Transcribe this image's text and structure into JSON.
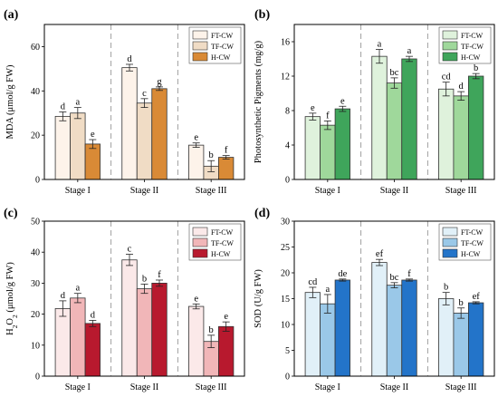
{
  "chart_data": [
    {
      "type": "bar",
      "panel": "(a)",
      "ylabel": "MDA (μmol/g FW)",
      "ylim": [
        0,
        70
      ],
      "yticks": [
        0,
        20,
        40,
        60
      ],
      "categories": [
        "Stage I",
        "Stage II",
        "Stage III"
      ],
      "series": [
        {
          "name": "FT-CW",
          "color": "#fdf3ea",
          "values": [
            28.5,
            50.5,
            15.5
          ],
          "errors": [
            2.0,
            1.5,
            1.0
          ],
          "letters": [
            "d",
            "d",
            "e"
          ]
        },
        {
          "name": "TF-CW",
          "color": "#f0dcc5",
          "values": [
            30.0,
            34.5,
            6.0
          ],
          "errors": [
            2.5,
            2.0,
            2.5
          ],
          "letters": [
            "a",
            "c",
            "b"
          ]
        },
        {
          "name": "H-CW",
          "color": "#d98a36",
          "values": [
            16.0,
            41.0,
            10.0
          ],
          "errors": [
            2.0,
            0.8,
            0.8
          ],
          "letters": [
            "e",
            "g",
            "f"
          ]
        }
      ]
    },
    {
      "type": "bar",
      "panel": "(b)",
      "ylabel": "Photosynthetic Pigments (mg/g)",
      "ylim": [
        0,
        18
      ],
      "yticks": [
        0,
        4,
        8,
        12,
        16
      ],
      "categories": [
        "Stage I",
        "Stage II",
        "Stage III"
      ],
      "series": [
        {
          "name": "FT-CW",
          "color": "#dff2dc",
          "values": [
            7.3,
            14.3,
            10.5
          ],
          "errors": [
            0.4,
            0.8,
            0.8
          ],
          "letters": [
            "e",
            "a",
            "cd"
          ]
        },
        {
          "name": "TF-CW",
          "color": "#9fd89b",
          "values": [
            6.3,
            11.2,
            9.7
          ],
          "errors": [
            0.5,
            0.6,
            0.5
          ],
          "letters": [
            "f",
            "bc",
            "d"
          ]
        },
        {
          "name": "H-CW",
          "color": "#3fa55b",
          "values": [
            8.2,
            14.0,
            12.0
          ],
          "errors": [
            0.3,
            0.3,
            0.3
          ],
          "letters": [
            "e",
            "a",
            "b"
          ]
        }
      ]
    },
    {
      "type": "bar",
      "panel": "(c)",
      "ylabel": "H2O2 (μmol/g FW)",
      "ylabel_main": "H",
      "ylabel_sub1": "2",
      "ylabel_mid": "O",
      "ylabel_sub2": "2",
      "ylabel_tail": " (μmol/g FW)",
      "ylim": [
        0,
        50
      ],
      "yticks": [
        0,
        10,
        20,
        30,
        40,
        50
      ],
      "categories": [
        "Stage I",
        "Stage II",
        "Stage III"
      ],
      "series": [
        {
          "name": "FT-CW",
          "color": "#fbe9e9",
          "values": [
            21.8,
            37.5,
            22.5
          ],
          "errors": [
            2.5,
            1.8,
            0.8
          ],
          "letters": [
            "d",
            "c",
            "e"
          ]
        },
        {
          "name": "TF-CW",
          "color": "#f1b6b8",
          "values": [
            25.2,
            28.2,
            11.2
          ],
          "errors": [
            1.5,
            1.5,
            2.0
          ],
          "letters": [
            "a",
            "b",
            "b"
          ]
        },
        {
          "name": "H-CW",
          "color": "#b8192e",
          "values": [
            17.0,
            30.0,
            16.0
          ],
          "errors": [
            1.0,
            1.0,
            1.5
          ],
          "letters": [
            "d",
            "f",
            "e"
          ]
        }
      ]
    },
    {
      "type": "bar",
      "panel": "(d)",
      "ylabel": "SOD (U/g FW)",
      "ylim": [
        0,
        30
      ],
      "yticks": [
        0,
        5,
        10,
        15,
        20,
        25,
        30
      ],
      "categories": [
        "Stage I",
        "Stage II",
        "Stage III"
      ],
      "series": [
        {
          "name": "FT-CW",
          "color": "#e1f0f8",
          "values": [
            16.2,
            22.0,
            15.0
          ],
          "errors": [
            1.0,
            0.6,
            1.2
          ],
          "letters": [
            "cd",
            "ef",
            "b"
          ]
        },
        {
          "name": "TF-CW",
          "color": "#9ac8e8",
          "values": [
            14.0,
            17.6,
            12.2
          ],
          "errors": [
            1.8,
            0.5,
            1.0
          ],
          "letters": [
            "a",
            "bc",
            "b"
          ]
        },
        {
          "name": "H-CW",
          "color": "#2374c9",
          "values": [
            18.6,
            18.6,
            14.2
          ],
          "errors": [
            0.2,
            0.2,
            0.2
          ],
          "letters": [
            "de",
            "f",
            "ef"
          ]
        }
      ]
    }
  ]
}
